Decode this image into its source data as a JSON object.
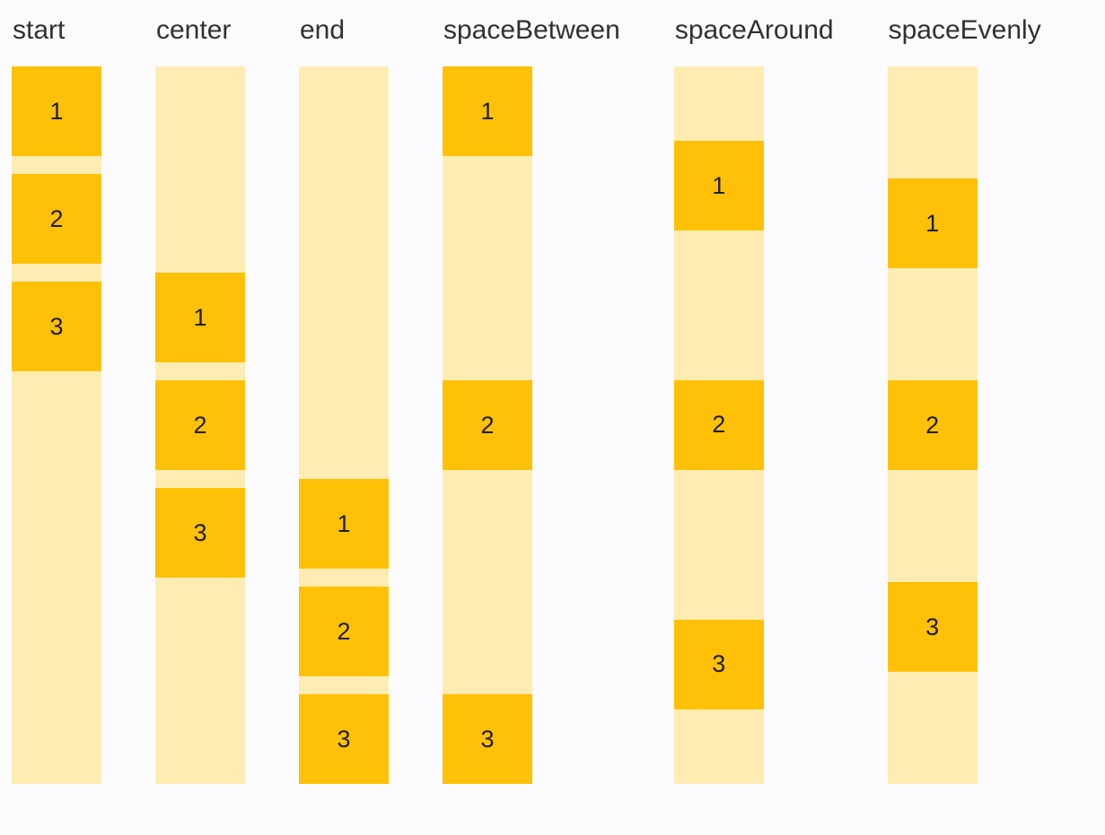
{
  "page": {
    "background": "#fbfbfe"
  },
  "colors": {
    "container": "#ffecb3",
    "box": "#ffc107",
    "label_text": "#313131",
    "box_text": "#1e1e1e"
  },
  "columns": [
    {
      "label": "start",
      "alignment": "start",
      "boxes": [
        "1",
        "2",
        "3"
      ]
    },
    {
      "label": "center",
      "alignment": "center",
      "boxes": [
        "1",
        "2",
        "3"
      ]
    },
    {
      "label": "end",
      "alignment": "end",
      "boxes": [
        "1",
        "2",
        "3"
      ]
    },
    {
      "label": "spaceBetween",
      "alignment": "spaceBetween",
      "boxes": [
        "1",
        "2",
        "3"
      ]
    },
    {
      "label": "spaceAround",
      "alignment": "spaceAround",
      "boxes": [
        "1",
        "2",
        "3"
      ]
    },
    {
      "label": "spaceEvenly",
      "alignment": "spaceEvenly",
      "boxes": [
        "1",
        "2",
        "3"
      ]
    }
  ]
}
